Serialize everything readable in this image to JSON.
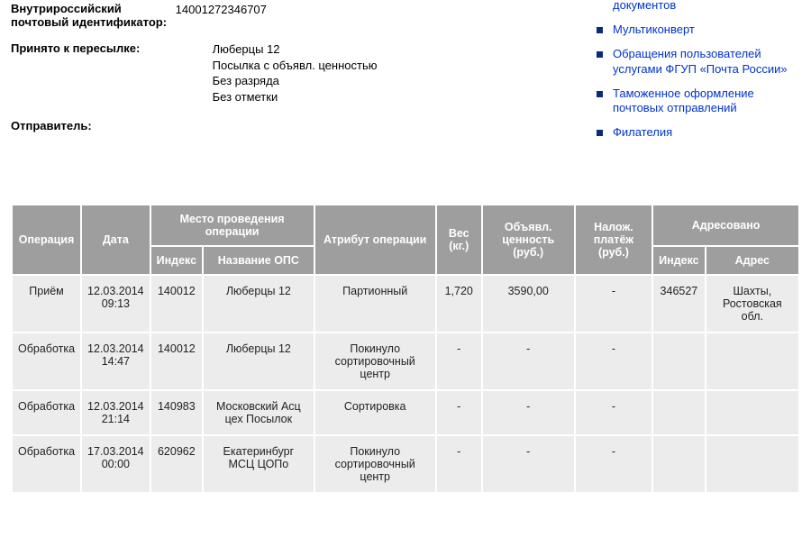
{
  "info": {
    "id_label_line1": "Внутрироссийский",
    "id_label_line2": "почтовый идентификатор:",
    "id_value": "14001272346707",
    "accept_label": "Принято к пересылке:",
    "accept_lines": [
      "Люберцы 12",
      "Посылка с объявл. ценностью",
      "Без разряда",
      "Без отметки"
    ],
    "sender_label": "Отправитель:"
  },
  "sidebar": {
    "items": [
      {
        "label": "документов"
      },
      {
        "label": "Мультиконверт"
      },
      {
        "label": "Обращения пользователей услугами ФГУП «Почта России»"
      },
      {
        "label": "Таможенное оформление почтовых отправлений"
      },
      {
        "label": "Филателия"
      }
    ]
  },
  "table": {
    "headers": {
      "op": "Операция",
      "date": "Дата",
      "place_group": "Место проведения операции",
      "place_index": "Индекс",
      "place_name": "Название ОПС",
      "attr": "Атрибут операции",
      "weight": "Вес (кг.)",
      "value": "Объявл. ценность (руб.)",
      "cod": "Налож. платёж (руб.)",
      "addr_group": "Адресовано",
      "addr_index": "Индекс",
      "addr_addr": "Адрес"
    },
    "rows": [
      {
        "op": "Приём",
        "date": "12.03.2014 09:13",
        "pidx": "140012",
        "pname": "Люберцы 12",
        "attr": "Партионный",
        "weight": "1,720",
        "val": "3590,00",
        "cod": "-",
        "aidx": "346527",
        "aaddr": "Шахты, Ростовская обл."
      },
      {
        "op": "Обработка",
        "date": "12.03.2014 14:47",
        "pidx": "140012",
        "pname": "Люберцы 12",
        "attr": "Покинуло сортировочный центр",
        "weight": "-",
        "val": "-",
        "cod": "-",
        "aidx": "",
        "aaddr": ""
      },
      {
        "op": "Обработка",
        "date": "12.03.2014 21:14",
        "pidx": "140983",
        "pname": "Московский Асц цех Посылок",
        "attr": "Сортировка",
        "weight": "-",
        "val": "-",
        "cod": "-",
        "aidx": "",
        "aaddr": ""
      },
      {
        "op": "Обработка",
        "date": "17.03.2014 00:00",
        "pidx": "620962",
        "pname": "Екатеринбург МСЦ ЦОПо",
        "attr": "Покинуло сортировочный центр",
        "weight": "-",
        "val": "-",
        "cod": "-",
        "aidx": "",
        "aaddr": ""
      }
    ]
  }
}
